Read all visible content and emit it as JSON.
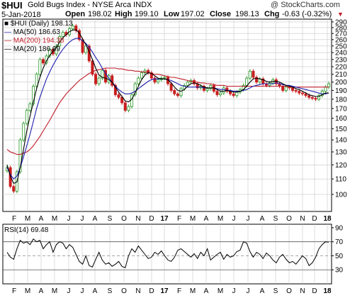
{
  "header": {
    "symbol": "$HUI",
    "name": "Gold Bugs Index - NYSE Arca  INDX",
    "credit": "@ StockCharts.com",
    "date": "5-Jan-2018",
    "open_label": "Open",
    "open": "198.02",
    "high_label": "High",
    "high": "199.10",
    "low_label": "Low",
    "low": "197.02",
    "close_label": "Close",
    "close": "198.13",
    "chg_label": "Chg",
    "chg": "-0.63 (-0.32%)"
  },
  "legend": {
    "price": "$HUI (Daily) 198.13",
    "ma50": "MA(50) 186.63",
    "ma200": "MA(200) 194.38",
    "ma20": "MA(20) 186.69"
  },
  "rsi": {
    "label": "RSI(14) 69.48"
  },
  "colors": {
    "up": "#2a9a2a",
    "down": "#c81e1e",
    "ma50": "#1f1fb0",
    "ma200": "#c01c28",
    "ma20": "#000000",
    "grid": "#c8c8c8",
    "axis": "#000000",
    "rsi_line": "#000000"
  },
  "chart_data": [
    {
      "type": "candlestick",
      "title": "$HUI Gold Bugs Index - NYSE Arca INDX",
      "x_tick_labels": [
        "F",
        "M",
        "A",
        "M",
        "J",
        "J",
        "A",
        "S",
        "O",
        "N",
        "D",
        "17",
        "F",
        "M",
        "A",
        "M",
        "J",
        "J",
        "A",
        "S",
        "O",
        "N",
        "D",
        "18"
      ],
      "y_ticks": [
        100,
        110,
        120,
        130,
        140,
        150,
        160,
        170,
        180,
        190,
        200,
        210,
        220,
        230,
        240,
        250,
        260,
        270,
        280,
        290
      ],
      "ylim": [
        90,
        295
      ],
      "log_scale": true,
      "grid": true,
      "series": [
        {
          "name": "$HUI (Daily)",
          "type": "candlestick",
          "x": [
            0,
            5,
            10,
            15,
            20,
            25,
            30,
            35,
            40,
            45,
            50,
            55,
            60,
            65,
            70,
            75,
            80,
            85,
            90,
            95,
            100,
            105,
            110,
            115,
            120,
            125,
            130,
            135,
            140,
            145,
            150,
            155,
            160,
            165,
            170,
            175,
            180,
            185,
            190,
            195,
            200,
            205,
            210,
            215,
            220,
            225,
            230,
            235,
            240,
            245,
            250,
            255,
            260,
            265,
            270,
            275,
            280,
            285,
            290,
            295,
            300,
            305,
            310,
            315,
            320,
            325,
            330,
            335,
            340,
            345,
            350,
            355,
            360,
            365,
            370,
            375,
            380,
            385,
            390,
            395,
            400,
            405,
            410,
            415,
            420,
            425,
            430,
            435,
            440,
            445,
            450,
            455,
            460,
            465,
            470,
            475,
            480,
            485,
            490
          ],
          "close": [
            118,
            105,
            102,
            115,
            140,
            155,
            168,
            175,
            195,
            210,
            230,
            225,
            235,
            245,
            238,
            250,
            265,
            272,
            268,
            278,
            283,
            275,
            260,
            240,
            250,
            228,
            210,
            198,
            205,
            215,
            200,
            208,
            196,
            185,
            182,
            176,
            168,
            172,
            185,
            198,
            205,
            212,
            215,
            212,
            205,
            200,
            203,
            205,
            206,
            198,
            190,
            186,
            184,
            192,
            196,
            200,
            202,
            198,
            193,
            195,
            190,
            192,
            196,
            189,
            185,
            187,
            193,
            189,
            186,
            184,
            188,
            191,
            196,
            205,
            214,
            206,
            200,
            204,
            198,
            196,
            199,
            203,
            198,
            195,
            190,
            194,
            193,
            190,
            189,
            187,
            186,
            184,
            182,
            181,
            180,
            184,
            189,
            194,
            198
          ]
        },
        {
          "name": "MA(50)",
          "values": [
            118,
            113,
            110,
            112,
            118,
            126,
            135,
            145,
            157,
            170,
            182,
            193,
            204,
            213,
            222,
            230,
            238,
            245,
            251,
            256,
            260,
            262,
            262,
            258,
            254,
            248,
            241,
            233,
            226,
            218,
            211,
            205,
            200,
            195,
            191,
            188,
            186,
            186,
            187,
            189,
            192,
            195,
            198,
            201,
            203,
            204,
            204,
            204,
            204,
            203,
            202,
            200,
            198,
            196,
            195,
            194,
            194,
            194,
            194,
            194,
            193,
            193,
            193,
            193,
            192,
            191,
            191,
            190,
            190,
            189,
            189,
            189,
            190,
            191,
            193,
            195,
            196,
            197,
            198,
            198,
            198,
            198,
            199,
            198,
            197,
            196,
            196,
            195,
            194,
            193,
            192,
            191,
            190,
            189,
            188,
            187,
            186,
            186,
            187
          ]
        },
        {
          "name": "MA(200)",
          "values": [
            132,
            130,
            129,
            128,
            128,
            129,
            130,
            132,
            135,
            139,
            143,
            148,
            153,
            158,
            164,
            170,
            176,
            181,
            186,
            190,
            194,
            198,
            202,
            205,
            208,
            211,
            213,
            215,
            216,
            217,
            218,
            218,
            218,
            218,
            217,
            217,
            216,
            215,
            215,
            214,
            214,
            213,
            213,
            212,
            211,
            210,
            210,
            209,
            208,
            207,
            206,
            206,
            205,
            204,
            203,
            202,
            201,
            200,
            200,
            199,
            199,
            198,
            198,
            197,
            196,
            196,
            196,
            195,
            195,
            195,
            195,
            195,
            195,
            195,
            195,
            195,
            195,
            195,
            195,
            195,
            195,
            195,
            195,
            195,
            195,
            195,
            194,
            194,
            194,
            194,
            194,
            194,
            194,
            194,
            194,
            194,
            194,
            194,
            194
          ]
        },
        {
          "name": "MA(20)",
          "values": [
            120,
            112,
            107,
            108,
            118,
            132,
            148,
            162,
            177,
            192,
            206,
            218,
            228,
            236,
            242,
            248,
            256,
            263,
            268,
            273,
            276,
            276,
            271,
            261,
            252,
            242,
            230,
            218,
            209,
            206,
            205,
            203,
            200,
            194,
            188,
            183,
            178,
            177,
            180,
            187,
            195,
            203,
            209,
            212,
            211,
            208,
            205,
            204,
            204,
            203,
            199,
            194,
            190,
            189,
            191,
            195,
            198,
            199,
            198,
            196,
            194,
            193,
            193,
            193,
            191,
            189,
            189,
            190,
            189,
            188,
            188,
            189,
            191,
            195,
            200,
            204,
            205,
            204,
            203,
            201,
            200,
            201,
            201,
            200,
            198,
            196,
            195,
            194,
            192,
            191,
            189,
            187,
            185,
            184,
            183,
            183,
            185,
            187,
            187
          ]
        }
      ]
    },
    {
      "type": "line",
      "title": "RSI(14)",
      "x_tick_labels": [
        "F",
        "M",
        "A",
        "M",
        "J",
        "J",
        "A",
        "S",
        "O",
        "N",
        "D",
        "17",
        "F",
        "M",
        "A",
        "M",
        "J",
        "J",
        "A",
        "S",
        "O",
        "N",
        "D",
        "18"
      ],
      "y_ticks": [
        30,
        50,
        70,
        90
      ],
      "ylim": [
        10,
        95
      ],
      "reference_lines": [
        30,
        50,
        70
      ],
      "grid": true,
      "series": [
        {
          "name": "RSI(14)",
          "values": [
            55,
            48,
            45,
            60,
            72,
            68,
            70,
            66,
            74,
            70,
            72,
            60,
            66,
            70,
            55,
            66,
            70,
            68,
            60,
            66,
            62,
            52,
            42,
            38,
            50,
            36,
            34,
            45,
            55,
            44,
            38,
            40,
            35,
            38,
            42,
            35,
            33,
            50,
            60,
            55,
            64,
            58,
            52,
            46,
            48,
            55,
            52,
            57,
            50,
            44,
            42,
            48,
            58,
            60,
            56,
            52,
            48,
            53,
            46,
            55,
            50,
            60,
            44,
            48,
            52,
            55,
            45,
            52,
            48,
            50,
            56,
            58,
            70,
            68,
            56,
            48,
            55,
            52,
            46,
            54,
            50,
            44,
            40,
            48,
            52,
            45,
            40,
            42,
            38,
            44,
            50,
            46,
            36,
            40,
            48,
            60,
            66,
            70,
            69.48
          ]
        }
      ]
    }
  ]
}
